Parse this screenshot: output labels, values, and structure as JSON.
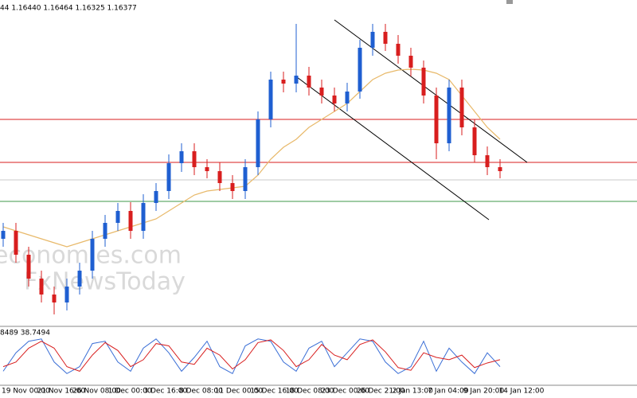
{
  "chart_data": {
    "type": "candlestick",
    "header": "44  1.16440 1.16464 1.16325 1.16377",
    "oscillator_header": "8489 38.7494",
    "watermarks": [
      "economies.com",
      "FxNewsToday"
    ],
    "ylim": [
      1.1555,
      1.176
    ],
    "open": [
      1.161,
      1.1615,
      1.16,
      1.1585,
      1.1575,
      1.157,
      1.158,
      1.159,
      1.161,
      1.162,
      1.16275,
      1.1615,
      1.16325,
      1.164,
      1.16575,
      1.1665,
      1.1655,
      1.16525,
      1.1645,
      1.164,
      1.1655,
      1.1685,
      1.171,
      1.17075,
      1.17125,
      1.1705,
      1.17,
      1.1695,
      1.17025,
      1.173,
      1.174,
      1.17325,
      1.1725,
      1.17175,
      1.17,
      1.167,
      1.1705,
      1.168,
      1.16625,
      1.1655
    ],
    "high": [
      1.162,
      1.162,
      1.1605,
      1.159,
      1.158,
      1.1585,
      1.1595,
      1.1615,
      1.1625,
      1.16325,
      1.1633,
      1.1638,
      1.1645,
      1.1663,
      1.167,
      1.167,
      1.166,
      1.1658,
      1.165,
      1.166,
      1.169,
      1.1715,
      1.1715,
      1.1745,
      1.1718,
      1.171,
      1.1705,
      1.1708,
      1.1735,
      1.1745,
      1.1745,
      1.1738,
      1.173,
      1.1722,
      1.1705,
      1.171,
      1.171,
      1.1685,
      1.1668,
      1.166
    ],
    "low": [
      1.1605,
      1.1595,
      1.158,
      1.157,
      1.15625,
      1.1565,
      1.1575,
      1.1585,
      1.1605,
      1.1615,
      1.161,
      1.161,
      1.16275,
      1.1635,
      1.1652,
      1.165,
      1.1648,
      1.164,
      1.1635,
      1.1635,
      1.165,
      1.168,
      1.1702,
      1.1702,
      1.17,
      1.1695,
      1.169,
      1.169,
      1.1698,
      1.1725,
      1.1728,
      1.172,
      1.1712,
      1.1695,
      1.166,
      1.1665,
      1.1675,
      1.1658,
      1.165,
      1.1648
    ],
    "close": [
      1.1615,
      1.16,
      1.1585,
      1.1575,
      1.157,
      1.158,
      1.159,
      1.161,
      1.162,
      1.16275,
      1.1615,
      1.16325,
      1.164,
      1.16575,
      1.1665,
      1.1655,
      1.16525,
      1.1645,
      1.164,
      1.1655,
      1.1685,
      1.171,
      1.17075,
      1.17125,
      1.1705,
      1.17,
      1.1695,
      1.17025,
      1.173,
      1.174,
      1.17325,
      1.1725,
      1.17175,
      1.17,
      1.167,
      1.1705,
      1.168,
      1.16625,
      1.1655,
      1.16525
    ],
    "up_color": "#1f5fd1",
    "down_color": "#d81e1e",
    "moving_average": {
      "color": "#e8b96a",
      "values": [
        1.16175,
        1.1615,
        1.16125,
        1.161,
        1.16075,
        1.1605,
        1.16075,
        1.161,
        1.16125,
        1.1615,
        1.16175,
        1.162,
        1.16225,
        1.16275,
        1.16325,
        1.16375,
        1.164,
        1.1641,
        1.1642,
        1.1643,
        1.165,
        1.166,
        1.16675,
        1.16725,
        1.168,
        1.1685,
        1.169,
        1.1695,
        1.17025,
        1.171,
        1.1714,
        1.1716,
        1.17165,
        1.1716,
        1.1714,
        1.171,
        1.17,
        1.169,
        1.168,
        1.16725
      ]
    },
    "levels": [
      {
        "value": 1.1685,
        "color": "#d81e1e"
      },
      {
        "value": 1.1658,
        "color": "#d81e1e"
      },
      {
        "value": 1.1647,
        "color": "#c8c8c8"
      },
      {
        "value": 1.16335,
        "color": "#3f9a4a"
      }
    ],
    "oscillator": {
      "ylim": [
        0,
        100
      ],
      "series": [
        {
          "color": "#3b6fd6",
          "values": [
            20,
            60,
            85,
            90,
            40,
            15,
            30,
            80,
            85,
            40,
            20,
            70,
            90,
            60,
            20,
            50,
            85,
            30,
            15,
            75,
            90,
            85,
            40,
            20,
            70,
            85,
            30,
            60,
            90,
            85,
            40,
            15,
            30,
            85,
            20,
            70,
            40,
            15,
            60,
            30
          ]
        },
        {
          "color": "#d81e1e",
          "values": [
            30,
            40,
            70,
            85,
            70,
            30,
            20,
            55,
            82,
            65,
            30,
            45,
            80,
            75,
            40,
            35,
            70,
            55,
            25,
            45,
            82,
            88,
            65,
            30,
            45,
            78,
            55,
            45,
            78,
            88,
            62,
            28,
            22,
            60,
            50,
            45,
            55,
            28,
            38,
            45
          ]
        }
      ]
    },
    "x_labels": [
      "19 Nov 00:00",
      "21 Nov 16:00",
      "26 Nov 08:00",
      "1 Dec 00:00",
      "3 Dec 16:00",
      "8 Dec 08:00",
      "11 Dec 00:00",
      "15 Dec 16:00",
      "18 Dec 08:00",
      "23 Dec 00:00",
      "26 Dec 21:00",
      "2 Jan 13:00",
      "7 Jan 04:00",
      "9 Jan 20:00",
      "14 Jan 12:00"
    ]
  }
}
